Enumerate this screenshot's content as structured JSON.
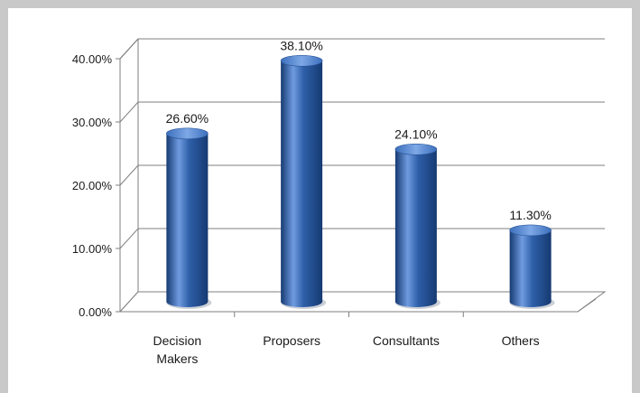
{
  "chart_data": {
    "type": "bar",
    "categories": [
      "Decision Makers",
      "Proposers",
      "Consultants",
      "Others"
    ],
    "category_lines": [
      [
        "Decision",
        "Makers"
      ],
      [
        "Proposers"
      ],
      [
        "Consultants"
      ],
      [
        "Others"
      ]
    ],
    "values": [
      26.6,
      38.1,
      24.1,
      11.3
    ],
    "data_labels": [
      "26.60%",
      "38.10%",
      "24.10%",
      "11.30%"
    ],
    "y_ticks": [
      0,
      10,
      20,
      30,
      40
    ],
    "y_tick_labels": [
      "0.00%",
      "10.00%",
      "20.00%",
      "30.00%",
      "40.00%"
    ],
    "ylim": [
      0,
      40
    ],
    "title": "",
    "xlabel": "",
    "ylabel": "",
    "grid": true,
    "legend": "none",
    "bar_color": "#2e5fa8",
    "bar_color_light": "#6f9be0",
    "bar_color_dark": "#163a72"
  }
}
